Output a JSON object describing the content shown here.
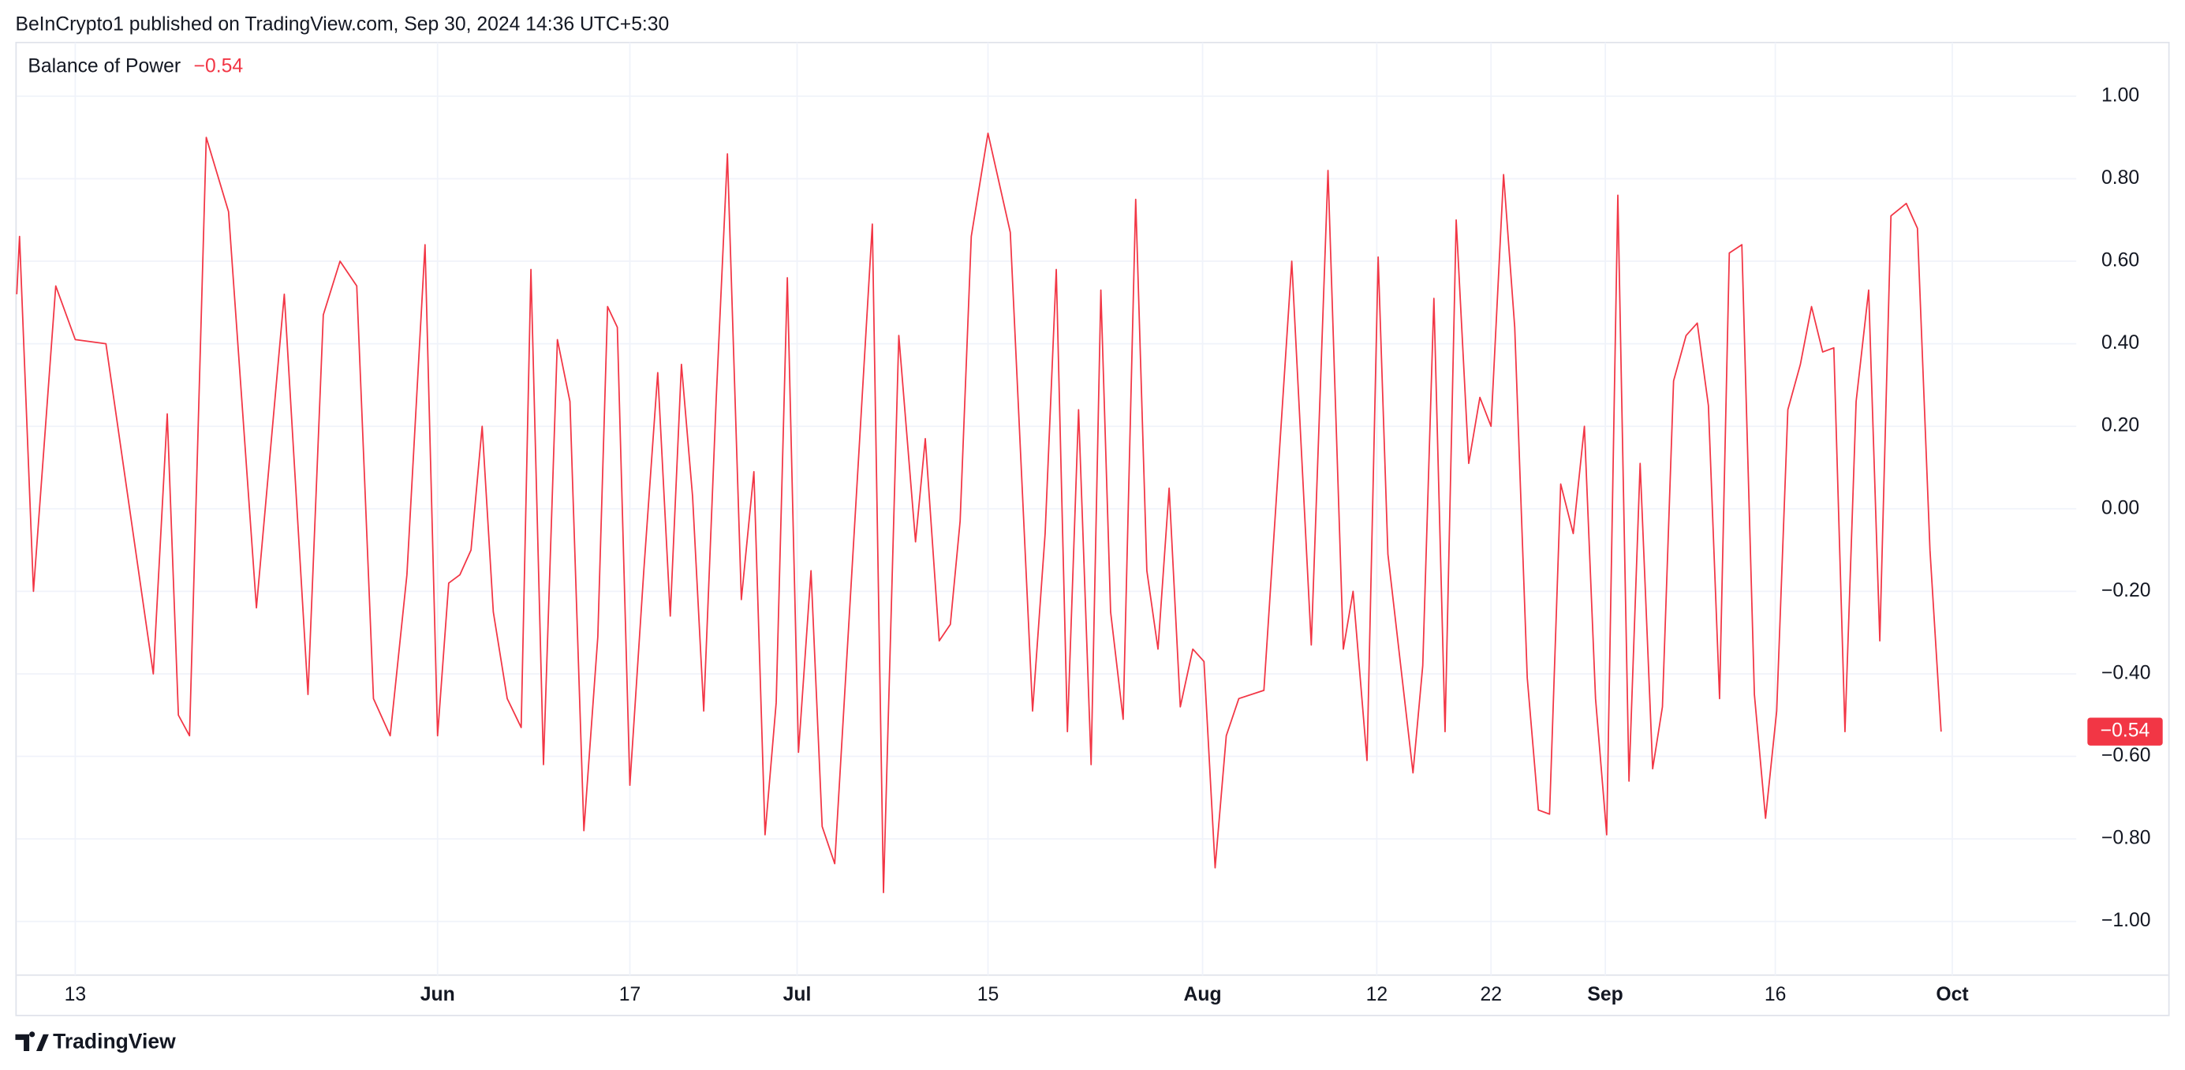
{
  "header": {
    "text": "BeInCrypto1 published on TradingView.com, Sep 30, 2024 14:36 UTC+5:30"
  },
  "footer": {
    "brand": "TradingView"
  },
  "chart_data": {
    "type": "line",
    "last_value_label": "−0.54",
    "x": [
      0,
      2,
      12,
      28,
      42,
      64,
      98,
      108,
      116,
      124,
      136,
      152,
      172,
      192,
      209,
      220,
      232,
      244,
      256,
      268,
      280,
      293,
      302,
      310,
      318,
      326,
      334,
      342,
      352,
      362,
      369,
      378,
      388,
      397,
      407,
      417,
      424,
      431,
      440,
      450,
      460,
      469,
      477,
      485,
      493,
      502,
      510,
      520,
      529,
      537,
      545,
      553,
      561,
      570,
      578,
      587,
      614,
      622,
      633,
      645,
      652,
      662,
      670,
      677,
      685,
      697,
      713,
      729,
      738,
      746,
      754,
      762,
      771,
      778,
      785,
      794,
      803,
      811,
      819,
      827,
      835,
      844,
      852,
      860,
      868,
      877,
      895,
      915,
      929,
      941,
      952,
      959,
      969,
      977,
      984,
      1002,
      1009,
      1017,
      1025,
      1033,
      1042,
      1050,
      1058,
      1067,
      1075,
      1084,
      1092,
      1100,
      1108,
      1117,
      1125,
      1133,
      1141,
      1149,
      1157,
      1165,
      1174,
      1181,
      1189,
      1198,
      1206,
      1214,
      1222,
      1229,
      1238,
      1247,
      1255,
      1263,
      1271,
      1280,
      1288,
      1296,
      1304,
      1312,
      1320,
      1329,
      1337,
      1345,
      1356,
      1364,
      1373,
      1381
    ],
    "series": [
      {
        "name": "Balance of Power",
        "color": "#f23645",
        "values": [
          0.52,
          0.66,
          -0.2,
          0.54,
          0.41,
          0.4,
          -0.4,
          0.23,
          -0.5,
          -0.55,
          0.9,
          0.72,
          -0.24,
          0.52,
          -0.45,
          0.47,
          0.6,
          0.54,
          -0.46,
          -0.55,
          -0.16,
          0.64,
          -0.55,
          -0.18,
          -0.16,
          -0.1,
          0.2,
          -0.25,
          -0.46,
          -0.53,
          0.58,
          -0.62,
          0.41,
          0.26,
          -0.78,
          -0.31,
          0.49,
          0.44,
          -0.67,
          -0.15,
          0.33,
          -0.26,
          0.35,
          0.03,
          -0.49,
          0.27,
          0.86,
          -0.22,
          0.09,
          -0.79,
          -0.47,
          0.56,
          -0.59,
          -0.15,
          -0.77,
          -0.86,
          0.69,
          -0.93,
          0.42,
          -0.08,
          0.17,
          -0.32,
          -0.28,
          -0.03,
          0.66,
          0.91,
          0.67,
          -0.49,
          -0.06,
          0.58,
          -0.54,
          0.24,
          -0.62,
          0.53,
          -0.25,
          -0.51,
          0.75,
          -0.15,
          -0.34,
          0.05,
          -0.48,
          -0.34,
          -0.37,
          -0.87,
          -0.55,
          -0.46,
          -0.44,
          0.6,
          -0.33,
          0.82,
          -0.34,
          -0.2,
          -0.61,
          0.61,
          -0.11,
          -0.64,
          -0.38,
          0.51,
          -0.54,
          0.7,
          0.11,
          0.27,
          0.2,
          0.81,
          0.44,
          -0.41,
          -0.73,
          -0.74,
          0.06,
          -0.06,
          0.2,
          -0.46,
          -0.79,
          0.76,
          -0.66,
          0.11,
          -0.63,
          -0.48,
          0.31,
          0.42,
          0.45,
          0.25,
          -0.46,
          0.62,
          0.64,
          -0.45,
          -0.75,
          -0.49,
          0.24,
          0.35,
          0.49,
          0.38,
          0.39,
          -0.54,
          0.26,
          0.53,
          -0.32,
          0.71,
          0.74,
          0.68,
          -0.1,
          -0.54
        ]
      }
    ],
    "xlim": [
      0,
      1478
    ],
    "xticks": [
      {
        "value": 42,
        "label": "13"
      },
      {
        "value": 302,
        "label": "Jun"
      },
      {
        "value": 440,
        "label": "17"
      },
      {
        "value": 560,
        "label": "Jul"
      },
      {
        "value": 697,
        "label": "15"
      },
      {
        "value": 851,
        "label": "Aug"
      },
      {
        "value": 976,
        "label": "12"
      },
      {
        "value": 1058,
        "label": "22"
      },
      {
        "value": 1140,
        "label": "Sep"
      },
      {
        "value": 1262,
        "label": "16"
      },
      {
        "value": 1389,
        "label": "Oct"
      }
    ],
    "ylim": [
      -1.13,
      1.13
    ],
    "yticks": [
      {
        "value": 1,
        "label": "1.00"
      },
      {
        "value": 0.8,
        "label": "0.80"
      },
      {
        "value": 0.6,
        "label": "0.60"
      },
      {
        "value": 0.4,
        "label": "0.40"
      },
      {
        "value": 0.2,
        "label": "0.20"
      },
      {
        "value": 0,
        "label": "0.00"
      },
      {
        "value": -0.2,
        "label": "−0.20"
      },
      {
        "value": -0.4,
        "label": "−0.40"
      },
      {
        "value": -0.6,
        "label": "−0.60"
      },
      {
        "value": -0.8,
        "label": "−0.80"
      },
      {
        "value": -1,
        "label": "−1.00"
      }
    ],
    "grid": true
  }
}
